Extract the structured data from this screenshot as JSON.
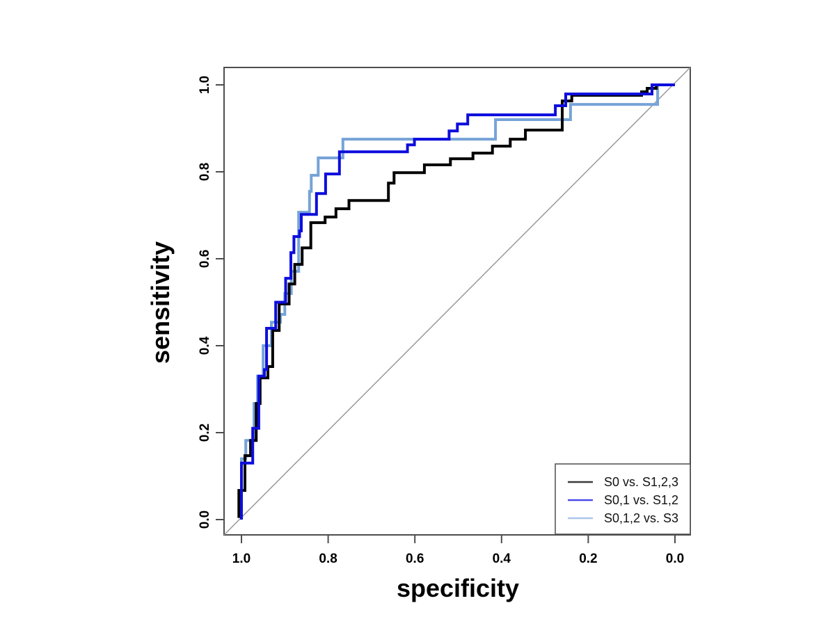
{
  "chart_data": {
    "type": "line",
    "subtype": "roc-step-curves",
    "title": "",
    "xlabel": "specificity",
    "ylabel": "sensitivity",
    "x_axis": {
      "reversed": true,
      "range": [
        1.0,
        0.0
      ],
      "tick_labels": [
        "1.0",
        "0.8",
        "0.6",
        "0.4",
        "0.2",
        "0.0"
      ],
      "tick_values": [
        1.0,
        0.8,
        0.6,
        0.4,
        0.2,
        0.0
      ]
    },
    "y_axis": {
      "range": [
        0.0,
        1.0
      ],
      "tick_labels": [
        "0.0",
        "0.2",
        "0.4",
        "0.6",
        "0.8",
        "1.0"
      ],
      "tick_values": [
        0.0,
        0.2,
        0.4,
        0.6,
        0.8,
        1.0
      ]
    },
    "grid": false,
    "axis_color": "#4d4d4d",
    "reference_line": {
      "from": [
        1.0,
        0.0
      ],
      "to": [
        0.0,
        1.0
      ],
      "color": "#999999",
      "width": 1.5
    },
    "legend": {
      "position": "bottomright",
      "border_color": "#4d4d4d",
      "items": [
        {
          "label": "S0 vs. S1,2,3",
          "swatch_color": "#3a3a3a"
        },
        {
          "label": "S0,1 vs. S1,2",
          "swatch_color": "#4a4ae8"
        },
        {
          "label": "S0,1,2 vs. S3",
          "swatch_color": "#a9c8ec"
        }
      ]
    },
    "series": [
      {
        "name": "S0 vs. S1,2,3",
        "color": "#000000",
        "width": 4,
        "points_format": "[specificity, sensitivity]",
        "points": [
          [
            1.0,
            0.0
          ],
          [
            1.0,
            0.007
          ],
          [
            1.006,
            0.007
          ],
          [
            1.006,
            0.067
          ],
          [
            0.992,
            0.067
          ],
          [
            0.992,
            0.147
          ],
          [
            0.979,
            0.147
          ],
          [
            0.979,
            0.182
          ],
          [
            0.966,
            0.182
          ],
          [
            0.966,
            0.267
          ],
          [
            0.957,
            0.267
          ],
          [
            0.957,
            0.326
          ],
          [
            0.939,
            0.326
          ],
          [
            0.939,
            0.352
          ],
          [
            0.928,
            0.352
          ],
          [
            0.928,
            0.435
          ],
          [
            0.913,
            0.435
          ],
          [
            0.913,
            0.496
          ],
          [
            0.89,
            0.496
          ],
          [
            0.89,
            0.542
          ],
          [
            0.877,
            0.542
          ],
          [
            0.877,
            0.587
          ],
          [
            0.86,
            0.587
          ],
          [
            0.86,
            0.625
          ],
          [
            0.84,
            0.625
          ],
          [
            0.84,
            0.683
          ],
          [
            0.807,
            0.683
          ],
          [
            0.807,
            0.696
          ],
          [
            0.782,
            0.696
          ],
          [
            0.782,
            0.715
          ],
          [
            0.752,
            0.715
          ],
          [
            0.752,
            0.734
          ],
          [
            0.661,
            0.734
          ],
          [
            0.661,
            0.774
          ],
          [
            0.648,
            0.774
          ],
          [
            0.648,
            0.798
          ],
          [
            0.578,
            0.798
          ],
          [
            0.578,
            0.816
          ],
          [
            0.518,
            0.816
          ],
          [
            0.518,
            0.83
          ],
          [
            0.466,
            0.83
          ],
          [
            0.466,
            0.843
          ],
          [
            0.421,
            0.843
          ],
          [
            0.421,
            0.859
          ],
          [
            0.38,
            0.859
          ],
          [
            0.38,
            0.875
          ],
          [
            0.345,
            0.875
          ],
          [
            0.345,
            0.896
          ],
          [
            0.26,
            0.896
          ],
          [
            0.26,
            0.963
          ],
          [
            0.238,
            0.963
          ],
          [
            0.238,
            0.976
          ],
          [
            0.077,
            0.976
          ],
          [
            0.077,
            0.984
          ],
          [
            0.064,
            0.984
          ],
          [
            0.064,
            0.992
          ],
          [
            0.043,
            0.992
          ],
          [
            0.043,
            1.0
          ],
          [
            0.0,
            1.0
          ]
        ]
      },
      {
        "name": "S0,1 vs. S1,2",
        "color": "#0d0ddd",
        "width": 4,
        "points_format": "[specificity, sensitivity]",
        "points": [
          [
            1.0,
            0.0
          ],
          [
            1.0,
            0.13
          ],
          [
            0.974,
            0.13
          ],
          [
            0.974,
            0.21
          ],
          [
            0.96,
            0.21
          ],
          [
            0.96,
            0.33
          ],
          [
            0.947,
            0.33
          ],
          [
            0.947,
            0.345
          ],
          [
            0.942,
            0.345
          ],
          [
            0.942,
            0.44
          ],
          [
            0.921,
            0.44
          ],
          [
            0.921,
            0.5
          ],
          [
            0.898,
            0.5
          ],
          [
            0.898,
            0.555
          ],
          [
            0.886,
            0.555
          ],
          [
            0.886,
            0.614
          ],
          [
            0.879,
            0.614
          ],
          [
            0.879,
            0.651
          ],
          [
            0.866,
            0.651
          ],
          [
            0.866,
            0.664
          ],
          [
            0.862,
            0.664
          ],
          [
            0.862,
            0.702
          ],
          [
            0.827,
            0.702
          ],
          [
            0.827,
            0.75
          ],
          [
            0.806,
            0.75
          ],
          [
            0.806,
            0.795
          ],
          [
            0.774,
            0.795
          ],
          [
            0.774,
            0.846
          ],
          [
            0.617,
            0.846
          ],
          [
            0.617,
            0.862
          ],
          [
            0.601,
            0.862
          ],
          [
            0.601,
            0.875
          ],
          [
            0.521,
            0.875
          ],
          [
            0.521,
            0.894
          ],
          [
            0.502,
            0.894
          ],
          [
            0.502,
            0.91
          ],
          [
            0.478,
            0.91
          ],
          [
            0.478,
            0.931
          ],
          [
            0.276,
            0.931
          ],
          [
            0.276,
            0.952
          ],
          [
            0.252,
            0.952
          ],
          [
            0.252,
            0.979
          ],
          [
            0.053,
            0.979
          ],
          [
            0.053,
            1.0
          ],
          [
            0.0,
            1.0
          ]
        ]
      },
      {
        "name": "S0,1,2 vs. S3",
        "color": "#76a3d8",
        "width": 4,
        "points_format": "[specificity, sensitivity]",
        "points": [
          [
            1.0,
            0.0
          ],
          [
            1.0,
            0.14
          ],
          [
            0.99,
            0.14
          ],
          [
            0.99,
            0.182
          ],
          [
            0.971,
            0.182
          ],
          [
            0.971,
            0.267
          ],
          [
            0.963,
            0.267
          ],
          [
            0.963,
            0.33
          ],
          [
            0.95,
            0.33
          ],
          [
            0.95,
            0.4
          ],
          [
            0.931,
            0.4
          ],
          [
            0.931,
            0.454
          ],
          [
            0.91,
            0.454
          ],
          [
            0.91,
            0.472
          ],
          [
            0.9,
            0.472
          ],
          [
            0.9,
            0.52
          ],
          [
            0.885,
            0.52
          ],
          [
            0.885,
            0.571
          ],
          [
            0.868,
            0.571
          ],
          [
            0.868,
            0.707
          ],
          [
            0.843,
            0.707
          ],
          [
            0.843,
            0.755
          ],
          [
            0.839,
            0.755
          ],
          [
            0.839,
            0.792
          ],
          [
            0.823,
            0.792
          ],
          [
            0.823,
            0.832
          ],
          [
            0.766,
            0.832
          ],
          [
            0.766,
            0.875
          ],
          [
            0.414,
            0.875
          ],
          [
            0.414,
            0.92
          ],
          [
            0.241,
            0.92
          ],
          [
            0.241,
            0.955
          ],
          [
            0.04,
            0.955
          ],
          [
            0.04,
            1.0
          ],
          [
            0.0,
            1.0
          ]
        ]
      }
    ]
  }
}
